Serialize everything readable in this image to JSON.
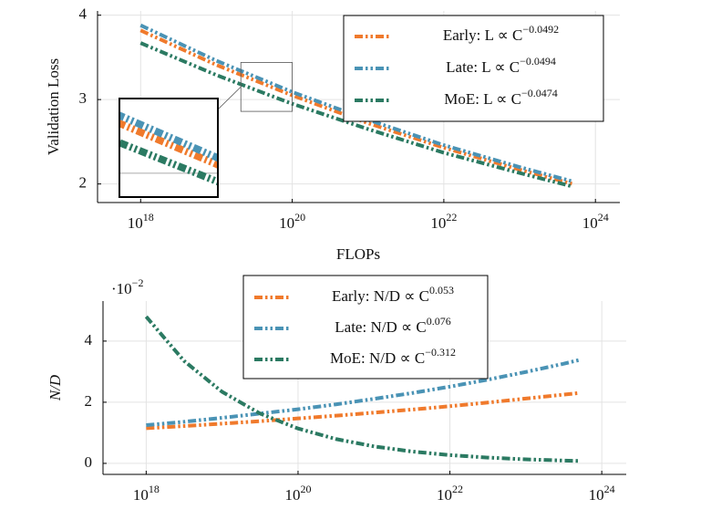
{
  "chart_data": [
    {
      "type": "line",
      "x_label": "FLOPs",
      "y_label": "Validation Loss",
      "log_x": true,
      "grid": true,
      "legend": "upper right",
      "x": [
        1e+18,
        1e+19,
        1e+20,
        1e+21,
        1e+22,
        1e+23,
        5e+23
      ],
      "series": [
        {
          "name": "Early: L ∝ C^−0.0492",
          "color": "#f07a2c",
          "values": [
            3.82,
            3.41,
            3.05,
            2.72,
            2.43,
            2.17,
            2.0
          ]
        },
        {
          "name": "Late: L ∝ C^−0.0494",
          "color": "#4a93b5",
          "values": [
            3.88,
            3.46,
            3.09,
            2.76,
            2.46,
            2.2,
            2.03
          ]
        },
        {
          "name": "MoE: L ∝ C^−0.0474",
          "color": "#2b7a62",
          "values": [
            3.67,
            3.29,
            2.95,
            2.65,
            2.37,
            2.13,
            1.97
          ]
        }
      ],
      "xlim": [
        2.7e+17,
        2.1e+24
      ],
      "ylim": [
        1.78,
        4.05
      ],
      "xticks": [
        {
          "value": 1e+18,
          "label": "10^18"
        },
        {
          "value": 1e+20,
          "label": "10^20"
        },
        {
          "value": 1e+22,
          "label": "10^22"
        },
        {
          "value": 1e+24,
          "label": "10^24"
        }
      ],
      "yticks": [
        2,
        3,
        4
      ],
      "inset": {
        "xlim": [
          2.1e+19,
          1e+20
        ],
        "ylim": [
          2.86,
          3.44
        ]
      }
    },
    {
      "type": "line",
      "y_label": "N/D",
      "y_multiplier": "·10^−2",
      "log_x": true,
      "grid": true,
      "legend": "upper center",
      "x": [
        1e+18,
        3.16e+18,
        1e+19,
        3.16e+19,
        1e+20,
        3.16e+20,
        1e+21,
        3.16e+21,
        1e+22,
        3.16e+22,
        1e+23,
        3.16e+23,
        5e+23
      ],
      "series": [
        {
          "name": "Early: N/D ∝ C^0.053",
          "color": "#f07a2c",
          "values": [
            1.15,
            1.22,
            1.3,
            1.38,
            1.47,
            1.56,
            1.66,
            1.76,
            1.87,
            1.99,
            2.12,
            2.25,
            2.3
          ]
        },
        {
          "name": "Late: N/D ∝ C^0.076",
          "color": "#4a93b5",
          "values": [
            1.25,
            1.36,
            1.49,
            1.63,
            1.77,
            1.93,
            2.11,
            2.3,
            2.51,
            2.74,
            2.99,
            3.26,
            3.38
          ]
        },
        {
          "name": "MoE: N/D ∝ C^−0.312",
          "color": "#2b7a62",
          "values": [
            4.8,
            3.35,
            2.34,
            1.63,
            1.14,
            0.796,
            0.556,
            0.388,
            0.271,
            0.189,
            0.132,
            0.092,
            0.08
          ]
        }
      ],
      "xlim": [
        2.7e+17,
        2.1e+24
      ],
      "ylim": [
        -0.36,
        5.31
      ],
      "xticks": [
        {
          "value": 1e+18,
          "label": "10^18"
        },
        {
          "value": 1e+20,
          "label": "10^20"
        },
        {
          "value": 1e+22,
          "label": "10^22"
        },
        {
          "value": 1e+24,
          "label": "10^24"
        }
      ],
      "yticks": [
        0,
        2,
        4
      ]
    }
  ]
}
